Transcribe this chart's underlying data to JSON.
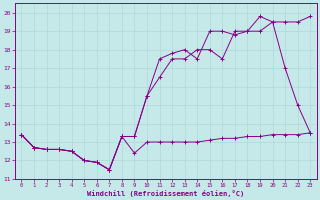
{
  "xlabel": "Windchill (Refroidissement éolien,°C)",
  "xlim": [
    -0.5,
    23.5
  ],
  "ylim": [
    11,
    20.5
  ],
  "xticks": [
    0,
    1,
    2,
    3,
    4,
    5,
    6,
    7,
    8,
    9,
    10,
    11,
    12,
    13,
    14,
    15,
    16,
    17,
    18,
    19,
    20,
    21,
    22,
    23
  ],
  "yticks": [
    11,
    12,
    13,
    14,
    15,
    16,
    17,
    18,
    19,
    20
  ],
  "background_color": "#c5e8e8",
  "grid_color": "#b0d8d8",
  "line_color": "#880088",
  "series1_x": [
    0,
    1,
    2,
    3,
    4,
    5,
    6,
    7,
    8,
    9,
    10,
    11,
    12,
    13,
    14,
    15,
    16,
    17,
    18,
    19,
    20,
    21,
    22,
    23
  ],
  "series1_y": [
    13.4,
    12.7,
    12.6,
    12.6,
    12.5,
    12.0,
    11.9,
    11.5,
    13.3,
    12.4,
    13.0,
    13.0,
    13.0,
    13.0,
    13.0,
    13.1,
    13.2,
    13.2,
    13.3,
    13.3,
    13.4,
    13.4,
    13.4,
    13.5
  ],
  "series2_x": [
    0,
    1,
    2,
    3,
    4,
    5,
    6,
    7,
    8,
    9,
    10,
    11,
    12,
    13,
    14,
    15,
    16,
    17,
    18,
    19,
    20,
    21,
    22,
    23
  ],
  "series2_y": [
    13.4,
    12.7,
    12.6,
    12.6,
    12.5,
    12.0,
    11.9,
    11.5,
    13.3,
    13.3,
    15.5,
    16.5,
    17.5,
    17.5,
    18.0,
    18.0,
    17.5,
    19.0,
    19.0,
    19.0,
    19.5,
    17.0,
    15.0,
    13.5
  ],
  "series3_x": [
    0,
    1,
    2,
    3,
    4,
    5,
    6,
    7,
    8,
    9,
    10,
    11,
    12,
    13,
    14,
    15,
    16,
    17,
    18,
    19,
    20,
    21,
    22,
    23
  ],
  "series3_y": [
    13.4,
    12.7,
    12.6,
    12.6,
    12.5,
    12.0,
    11.9,
    11.5,
    13.3,
    13.3,
    15.5,
    17.5,
    17.8,
    18.0,
    17.5,
    19.0,
    19.0,
    18.8,
    19.0,
    19.8,
    19.5,
    19.5,
    19.5,
    19.8
  ]
}
